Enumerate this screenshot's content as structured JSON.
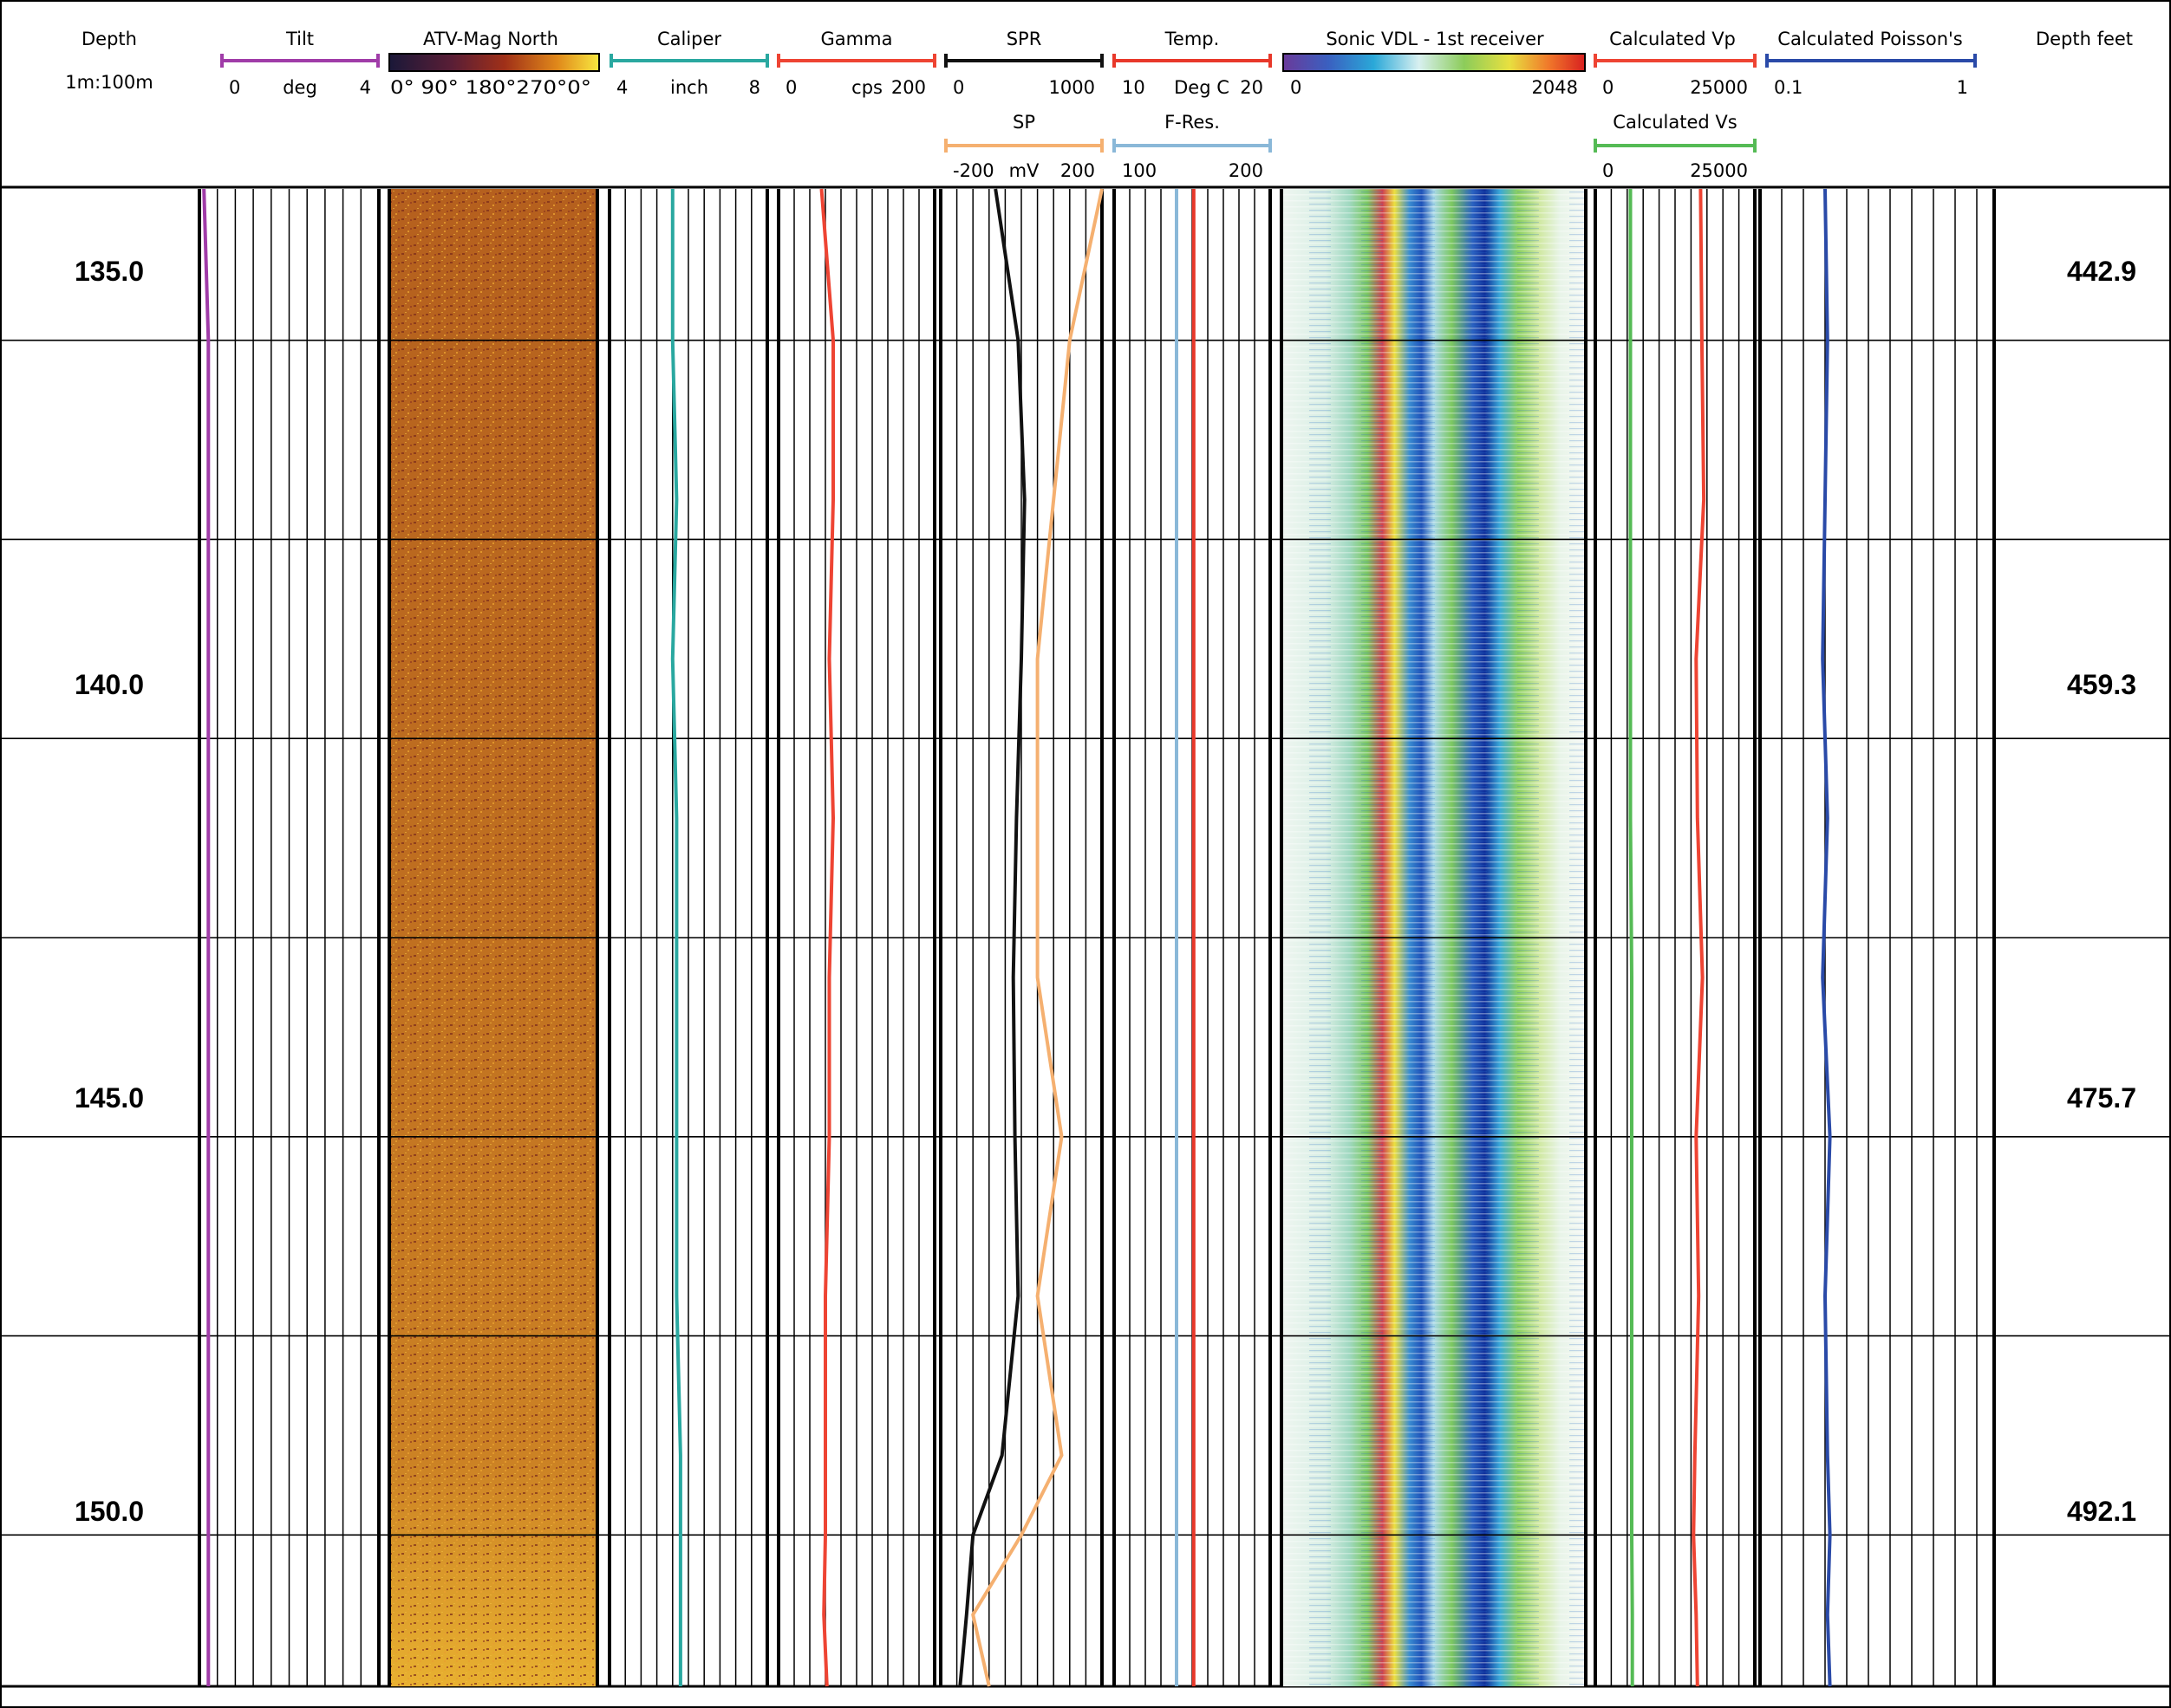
{
  "depth_column": {
    "title": "Depth",
    "scale": "1m:100m",
    "ticks_m": [
      "135.0",
      "140.0",
      "145.0",
      "150.0"
    ]
  },
  "feet_column": {
    "title": "Depth feet",
    "ticks_ft": [
      "442.9",
      "459.3",
      "475.7",
      "492.1"
    ]
  },
  "colors": {
    "tilt": "#a03ca8",
    "caliper": "#2aa8a0",
    "gamma": "#ee4433",
    "spr": "#111111",
    "sp": "#f5b070",
    "temp": "#e8382a",
    "fres": "#8ab8d8",
    "vp": "#ee4433",
    "vs": "#55bb55",
    "poisson": "#2a4aa8"
  },
  "tracks": {
    "tilt": {
      "name": "Tilt",
      "min": "0",
      "unit": "deg",
      "max": "4"
    },
    "atv": {
      "name": "ATV-Mag North",
      "scale": "0° 90° 180°270°0°"
    },
    "caliper": {
      "name": "Caliper",
      "min": "4",
      "unit": "inch",
      "max": "8"
    },
    "gamma": {
      "name": "Gamma",
      "min": "0",
      "unit": "cps",
      "max": "200"
    },
    "spr": {
      "name": "SPR",
      "min": "0",
      "max": "1000"
    },
    "sp": {
      "name": "SP",
      "min": "-200",
      "unit": "mV",
      "max": "200"
    },
    "temp": {
      "name": "Temp.",
      "min": "10",
      "unit": "Deg C",
      "max": "20"
    },
    "fres": {
      "name": "F-Res.",
      "min": "100",
      "max": "200"
    },
    "vdl": {
      "name": "Sonic VDL - 1st receiver",
      "min": "0",
      "max": "2048"
    },
    "vp": {
      "name": "Calculated Vp",
      "min": "0",
      "max": "25000"
    },
    "vs": {
      "name": "Calculated Vs",
      "min": "0",
      "max": "25000"
    },
    "poisson": {
      "name": "Calculated Poisson's",
      "min": "0.1",
      "max": "1"
    }
  },
  "chart_data": {
    "type": "line",
    "ylim": [
      133.1,
      151.9
    ],
    "depth_m": [
      133.1,
      135.0,
      137.0,
      139.0,
      141.0,
      143.0,
      145.0,
      147.0,
      149.0,
      150.0,
      151.0,
      151.9
    ],
    "series": [
      {
        "name": "Tilt",
        "xlim": [
          0,
          4
        ],
        "values": [
          0.1,
          0.2,
          0.2,
          0.2,
          0.2,
          0.2,
          0.2,
          0.2,
          0.2,
          0.2,
          0.2,
          0.2
        ]
      },
      {
        "name": "Caliper",
        "xlim": [
          4,
          8
        ],
        "values": [
          5.6,
          5.6,
          5.7,
          5.6,
          5.7,
          5.7,
          5.7,
          5.7,
          5.8,
          5.8,
          5.8,
          5.8
        ]
      },
      {
        "name": "Gamma",
        "xlim": [
          0,
          200
        ],
        "values": [
          55,
          70,
          70,
          65,
          70,
          65,
          65,
          60,
          60,
          60,
          58,
          62
        ]
      },
      {
        "name": "SPR",
        "xlim": [
          0,
          1000
        ],
        "values": [
          340,
          480,
          520,
          500,
          470,
          450,
          460,
          480,
          380,
          200,
          160,
          120
        ]
      },
      {
        "name": "SP",
        "xlim": [
          -200,
          200
        ],
        "values": [
          200,
          120,
          80,
          40,
          40,
          40,
          100,
          40,
          100,
          0,
          -120,
          -80
        ]
      },
      {
        "name": "Temp.",
        "xlim": [
          10,
          20
        ],
        "values": [
          15.1,
          15.1,
          15.1,
          15.1,
          15.1,
          15.1,
          15.1,
          15.1,
          15.1,
          15.1,
          15.1,
          15.1
        ]
      },
      {
        "name": "F-Res.",
        "xlim": [
          100,
          200
        ],
        "values": [
          140,
          140,
          140,
          140,
          140,
          140,
          140,
          140,
          140,
          140,
          140,
          140
        ]
      },
      {
        "name": "Calculated Vp",
        "xlim": [
          0,
          25000
        ],
        "values": [
          16500,
          16700,
          17000,
          15800,
          16000,
          16800,
          15800,
          16200,
          15600,
          15400,
          15800,
          16000
        ]
      },
      {
        "name": "Calculated Vs",
        "xlim": [
          0,
          25000
        ],
        "values": [
          5500,
          5500,
          5500,
          5500,
          5500,
          5700,
          5700,
          5700,
          5700,
          5700,
          5800,
          5800
        ]
      },
      {
        "name": "Calculated Poisson's",
        "xlim": [
          0.1,
          1
        ],
        "values": [
          0.37,
          0.38,
          0.37,
          0.36,
          0.38,
          0.36,
          0.39,
          0.37,
          0.38,
          0.39,
          0.38,
          0.39
        ]
      }
    ]
  }
}
